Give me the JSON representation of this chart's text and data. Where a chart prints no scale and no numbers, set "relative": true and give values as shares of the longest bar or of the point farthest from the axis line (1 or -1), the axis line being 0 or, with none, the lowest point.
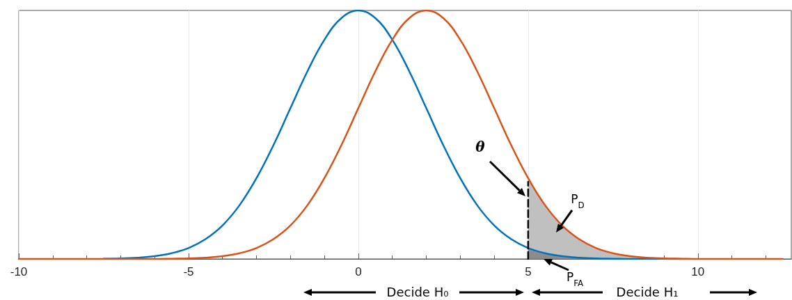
{
  "chart_data": {
    "type": "line",
    "relative": true,
    "x": [
      -10,
      -9.5,
      -9,
      -8.5,
      -8,
      -7.5,
      -7,
      -6.5,
      -6,
      -5.5,
      -5,
      -4.5,
      -4,
      -3.5,
      -3,
      -2.5,
      -2,
      -1.5,
      -1,
      -0.5,
      0,
      0.5,
      1,
      1.5,
      2,
      2.5,
      3,
      3.5,
      4,
      4.5,
      5,
      5.5,
      6,
      6.5,
      7,
      7.5,
      8,
      8.5,
      9,
      9.5,
      10,
      10.5,
      11,
      11.5,
      12,
      12.5
    ],
    "xlim": [
      -10,
      12.75
    ],
    "xticks": [
      -10,
      -5,
      0,
      5,
      10
    ],
    "grid": "x",
    "series": [
      {
        "type": "area",
        "color": "#c0c0c0",
        "x": [
          5,
          5.5,
          6,
          6.5,
          7,
          7.5,
          8,
          8.5,
          9,
          9.5,
          10
        ],
        "values": [
          0.325,
          0.216,
          0.135,
          0.08,
          0.044,
          0.023,
          0.011,
          0.005,
          0.002,
          0.001,
          0
        ]
      },
      {
        "type": "area",
        "color": "#8c8c8c",
        "x": [
          5,
          5.5,
          6,
          6.5,
          7,
          7.5
        ],
        "values": [
          0.044,
          0.023,
          0.011,
          0.005,
          0.002,
          0.001
        ]
      },
      {
        "color": "#0072bd",
        "values": [
          null,
          null,
          null,
          null,
          null,
          0.001,
          0.002,
          0.005,
          0.011,
          0.023,
          0.044,
          0.08,
          0.135,
          0.216,
          0.325,
          0.458,
          0.607,
          0.755,
          0.882,
          0.969,
          1,
          0.969,
          0.882,
          0.755,
          0.607,
          0.458,
          0.325,
          0.216,
          0.135,
          0.08,
          0.044,
          0.023,
          0.011,
          0.005,
          0.002,
          0.001,
          0,
          0,
          0,
          0,
          null,
          null,
          null,
          null,
          null,
          null
        ]
      },
      {
        "color": "#d95319",
        "values": [
          0,
          0,
          0,
          0,
          0,
          0,
          0,
          0,
          0,
          0.001,
          0.002,
          0.005,
          0.011,
          0.023,
          0.044,
          0.08,
          0.135,
          0.216,
          0.325,
          0.458,
          0.607,
          0.755,
          0.882,
          0.969,
          1,
          0.969,
          0.882,
          0.755,
          0.607,
          0.458,
          0.325,
          0.216,
          0.135,
          0.08,
          0.044,
          0.023,
          0.011,
          0.005,
          0.002,
          0.001,
          0,
          0,
          0,
          0,
          0,
          0
        ]
      },
      {
        "color": "#000000",
        "line_style": "dashed",
        "x": [
          5,
          5
        ],
        "values": [
          0,
          0.31
        ]
      }
    ],
    "annotations": [
      "θ",
      "P$_{D}$",
      "P$_{FA}$",
      "Decide H₀",
      "Decide H₁"
    ]
  }
}
